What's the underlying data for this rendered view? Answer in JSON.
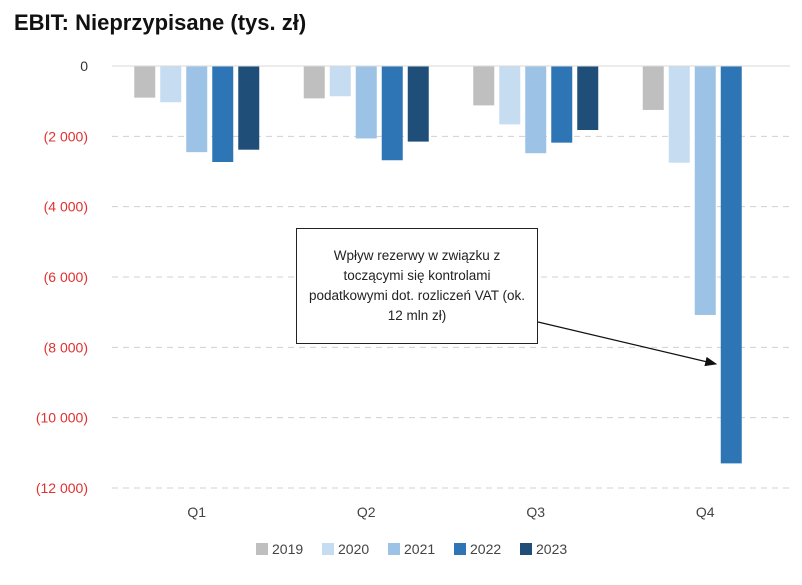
{
  "chart_data": {
    "type": "bar",
    "title": "EBIT: Nieprzypisane (tys. zł)",
    "categories": [
      "Q1",
      "Q2",
      "Q3",
      "Q4"
    ],
    "series": [
      {
        "name": "2019",
        "color": "#bfbfbf",
        "values": [
          -900,
          -920,
          -1120,
          -1250
        ]
      },
      {
        "name": "2020",
        "color": "#c6dcf0",
        "values": [
          -1030,
          -860,
          -1660,
          -2750
        ]
      },
      {
        "name": "2021",
        "color": "#9cc2e5",
        "values": [
          -2450,
          -2060,
          -2480,
          -7080
        ]
      },
      {
        "name": "2022",
        "color": "#2e75b6",
        "values": [
          -2730,
          -2680,
          -2180,
          -11300
        ]
      },
      {
        "name": "2023",
        "color": "#1f4e79",
        "values": [
          -2380,
          -2150,
          -1820,
          null
        ]
      }
    ],
    "ylim": [
      -12000,
      0
    ],
    "yticks": [
      0,
      -2000,
      -4000,
      -6000,
      -8000,
      -10000,
      -12000
    ],
    "ytick_labels": [
      "0",
      "(2 000)",
      "(4 000)",
      "(6 000)",
      "(8 000)",
      "(10 000)",
      "(12 000)"
    ],
    "grid": true,
    "legend_position": "bottom",
    "annotation": "Wpływ rezerwy w związku z toczącymi się kontrolami podatkowymi dot. rozliczeń VAT (ok. 12 mln zł)"
  }
}
